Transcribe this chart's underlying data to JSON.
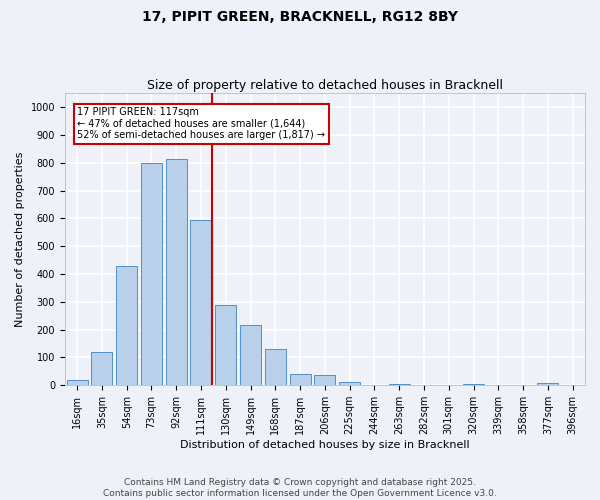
{
  "title1": "17, PIPIT GREEN, BRACKNELL, RG12 8BY",
  "title2": "Size of property relative to detached houses in Bracknell",
  "xlabel": "Distribution of detached houses by size in Bracknell",
  "ylabel": "Number of detached properties",
  "bin_labels": [
    "16sqm",
    "35sqm",
    "54sqm",
    "73sqm",
    "92sqm",
    "111sqm",
    "130sqm",
    "149sqm",
    "168sqm",
    "187sqm",
    "206sqm",
    "225sqm",
    "244sqm",
    "263sqm",
    "282sqm",
    "301sqm",
    "320sqm",
    "339sqm",
    "358sqm",
    "377sqm",
    "396sqm"
  ],
  "bar_values": [
    20,
    120,
    430,
    800,
    815,
    595,
    290,
    215,
    130,
    40,
    37,
    13,
    0,
    5,
    0,
    0,
    5,
    0,
    0,
    7,
    0
  ],
  "bar_color": "#b8d0ea",
  "bar_edge_color": "#5090c8",
  "property_size_idx": 5,
  "vline_color": "#cc0000",
  "annotation_text": "17 PIPIT GREEN: 117sqm\n← 47% of detached houses are smaller (1,644)\n52% of semi-detached houses are larger (1,817) →",
  "annotation_box_color": "#ffffff",
  "annotation_box_edge": "#cc0000",
  "ylim": [
    0,
    1050
  ],
  "yticks": [
    0,
    100,
    200,
    300,
    400,
    500,
    600,
    700,
    800,
    900,
    1000
  ],
  "footer": "Contains HM Land Registry data © Crown copyright and database right 2025.\nContains public sector information licensed under the Open Government Licence v3.0.",
  "bg_color": "#eef2f8",
  "grid_color": "#ffffff",
  "title_fontsize": 10,
  "subtitle_fontsize": 9,
  "axis_label_fontsize": 8,
  "tick_fontsize": 7,
  "footer_fontsize": 6.5
}
